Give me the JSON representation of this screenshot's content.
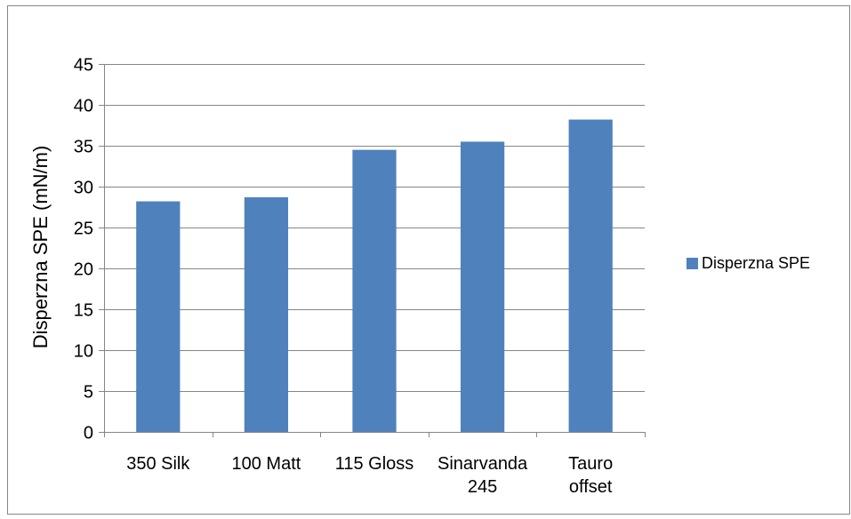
{
  "chart_data": {
    "type": "bar",
    "title": "",
    "xlabel": "",
    "ylabel": "Disperzna SPE (mN/m)",
    "categories": [
      [
        "350 Silk"
      ],
      [
        "100 Matt"
      ],
      [
        "115 Gloss"
      ],
      [
        "Sinarvanda",
        "245"
      ],
      [
        "Tauro",
        "offset"
      ]
    ],
    "series": [
      {
        "name": "Disperzna SPE",
        "values": [
          28.2,
          28.7,
          34.5,
          35.5,
          38.2
        ]
      }
    ],
    "ylim": [
      0,
      45
    ],
    "yticks": [
      0,
      5,
      10,
      15,
      20,
      25,
      30,
      35,
      40,
      45
    ],
    "grid": true,
    "legend_position": "right",
    "colors": {
      "bar": "#4f81bd",
      "grid": "#868686",
      "axis": "#868686",
      "border": "#868686"
    }
  }
}
